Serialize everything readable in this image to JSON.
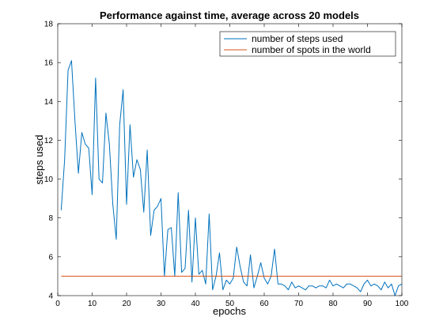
{
  "chart_data": {
    "type": "line",
    "title": "Performance against time, average across 20 models",
    "xlabel": "epochs",
    "ylabel": "steps used",
    "xlim": [
      0,
      100
    ],
    "ylim": [
      4,
      18
    ],
    "xticks": [
      0,
      10,
      20,
      30,
      40,
      50,
      60,
      70,
      80,
      90,
      100
    ],
    "yticks": [
      4,
      6,
      8,
      10,
      12,
      14,
      16,
      18
    ],
    "grid": false,
    "legend": "top-right",
    "series": [
      {
        "name": "number of steps used",
        "color": "#0072BD",
        "x": [
          1,
          2,
          3,
          4,
          5,
          6,
          7,
          8,
          9,
          10,
          11,
          12,
          13,
          14,
          15,
          16,
          17,
          18,
          19,
          20,
          21,
          22,
          23,
          24,
          25,
          26,
          27,
          28,
          29,
          30,
          31,
          32,
          33,
          34,
          35,
          36,
          37,
          38,
          39,
          40,
          41,
          42,
          43,
          44,
          45,
          46,
          47,
          48,
          49,
          50,
          51,
          52,
          53,
          54,
          55,
          56,
          57,
          58,
          59,
          60,
          61,
          62,
          63,
          64,
          65,
          66,
          67,
          68,
          69,
          70,
          71,
          72,
          73,
          74,
          75,
          76,
          77,
          78,
          79,
          80,
          81,
          82,
          83,
          84,
          85,
          86,
          87,
          88,
          89,
          90,
          91,
          92,
          93,
          94,
          95,
          96,
          97,
          98,
          99,
          100
        ],
        "y": [
          8.4,
          11.0,
          15.6,
          16.1,
          13.0,
          10.3,
          12.4,
          11.8,
          11.6,
          9.2,
          15.2,
          10.0,
          9.8,
          13.4,
          11.8,
          8.7,
          6.9,
          12.8,
          14.6,
          8.7,
          12.8,
          10.1,
          11.0,
          10.5,
          8.3,
          11.5,
          7.1,
          8.4,
          8.6,
          9.0,
          5.0,
          7.4,
          7.5,
          5.0,
          9.3,
          5.2,
          5.4,
          8.4,
          4.7,
          8.0,
          5.1,
          5.3,
          4.6,
          8.2,
          4.3,
          5.0,
          6.2,
          4.3,
          4.8,
          4.6,
          4.9,
          6.5,
          5.5,
          4.7,
          4.5,
          6.1,
          4.4,
          5.0,
          5.7,
          4.9,
          4.6,
          5.0,
          6.4,
          4.6,
          4.6,
          4.5,
          4.3,
          4.7,
          4.4,
          4.5,
          4.4,
          4.3,
          4.5,
          4.5,
          4.4,
          4.5,
          4.5,
          4.4,
          4.8,
          4.5,
          4.6,
          4.5,
          4.4,
          4.6,
          4.6,
          4.5,
          4.4,
          4.2,
          4.6,
          4.8,
          4.5,
          4.6,
          4.5,
          4.3,
          4.7,
          4.4,
          4.6,
          4.0,
          4.5,
          4.6
        ]
      },
      {
        "name": "number of spots in the world",
        "color": "#D95319",
        "x": [
          1,
          100
        ],
        "y": [
          5,
          5
        ]
      }
    ]
  }
}
